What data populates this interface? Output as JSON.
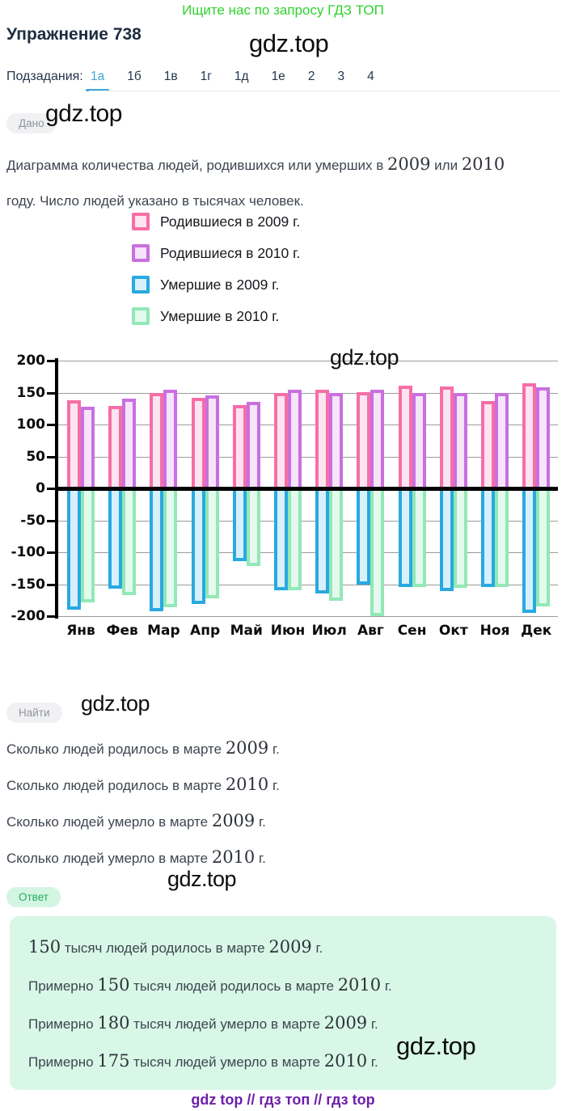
{
  "promo": {
    "text": "Ищите нас по запросу ГДЗ ТОП",
    "color": "#2ed32e"
  },
  "watermark": {
    "text": "gdz.top"
  },
  "title": "Упражнение 738",
  "tabs": {
    "label": "Подзадания:",
    "active_color": "#42a7d8",
    "items": [
      {
        "id": "1a",
        "label": "1а",
        "active": true
      },
      {
        "id": "1b",
        "label": "1б",
        "active": false
      },
      {
        "id": "1v",
        "label": "1в",
        "active": false
      },
      {
        "id": "1g",
        "label": "1г",
        "active": false
      },
      {
        "id": "1d",
        "label": "1д",
        "active": false
      },
      {
        "id": "1e",
        "label": "1е",
        "active": false
      },
      {
        "id": "2",
        "label": "2",
        "active": false
      },
      {
        "id": "3",
        "label": "3",
        "active": false
      },
      {
        "id": "4",
        "label": "4",
        "active": false
      }
    ]
  },
  "given": {
    "badge": "Дано",
    "lines": [
      [
        {
          "t": "Диаграмма количества людей, родившихся или умерших в "
        },
        {
          "t": "2009",
          "s": true
        },
        {
          "t": " или "
        },
        {
          "t": "2010",
          "s": true
        }
      ],
      [
        {
          "t": "году. Число людей указано в тысячах человек."
        }
      ]
    ]
  },
  "chart_data": {
    "type": "bar",
    "unit": "тысячи человек",
    "categories": [
      "Янв",
      "Фев",
      "Мар",
      "Апр",
      "Май",
      "Июн",
      "Июл",
      "Авг",
      "Сен",
      "Окт",
      "Ноя",
      "Дек"
    ],
    "series": [
      {
        "name": "Родившиеся в 2009 г.",
        "border": "#f76ea7",
        "fill": "#fce4f0",
        "values": [
          138,
          129,
          150,
          142,
          131,
          150,
          155,
          151,
          161,
          160,
          137,
          164
        ]
      },
      {
        "name": "Родившиеся в 2010 г.",
        "border": "#c96fe0",
        "fill": "#f6e4fa",
        "values": [
          128,
          140,
          155,
          145,
          135,
          155,
          150,
          155,
          150,
          150,
          150,
          158
        ]
      },
      {
        "name": "Умершие в 2009 г.",
        "border": "#29a9e1",
        "fill": "#d8f0fb",
        "values": [
          -190,
          -157,
          -193,
          -181,
          -114,
          -160,
          -165,
          -150,
          -155,
          -161,
          -155,
          -195
        ]
      },
      {
        "name": "Умершие в 2010 г.",
        "border": "#92e8b6",
        "fill": "#e4faee",
        "values": [
          -178,
          -167,
          -186,
          -172,
          -122,
          -159,
          -176,
          -200,
          -154,
          -156,
          -154,
          -185
        ]
      }
    ],
    "ylim": [
      -200,
      200
    ],
    "yticks": [
      200,
      150,
      100,
      50,
      0,
      -50,
      -100,
      -150,
      -200
    ],
    "grid": true,
    "legend_position": "above-chart"
  },
  "find": {
    "badge": "Найти",
    "questions": [
      [
        {
          "t": "Сколько людей родилось в марте "
        },
        {
          "t": "2009",
          "s": true
        },
        {
          "t": " г."
        }
      ],
      [
        {
          "t": "Сколько людей родилось в марте "
        },
        {
          "t": "2010",
          "s": true
        },
        {
          "t": " г."
        }
      ],
      [
        {
          "t": "Сколько людей умерло в марте "
        },
        {
          "t": "2009",
          "s": true
        },
        {
          "t": " г."
        }
      ],
      [
        {
          "t": "Сколько людей умерло в марте "
        },
        {
          "t": "2010",
          "s": true
        },
        {
          "t": " г."
        }
      ]
    ]
  },
  "answer": {
    "badge": "Ответ",
    "box_color": "#d8f7e7",
    "lines": [
      [
        {
          "t": "150",
          "s": true
        },
        {
          "t": " тысяч людей родилось в марте "
        },
        {
          "t": "2009",
          "s": true
        },
        {
          "t": " г."
        }
      ],
      [
        {
          "t": "Примерно "
        },
        {
          "t": "150",
          "s": true
        },
        {
          "t": " тысяч людей родилось в марте "
        },
        {
          "t": "2010",
          "s": true
        },
        {
          "t": " г."
        }
      ],
      [
        {
          "t": "Примерно "
        },
        {
          "t": "180",
          "s": true
        },
        {
          "t": " тысяч людей умерло в марте "
        },
        {
          "t": "2009",
          "s": true
        },
        {
          "t": " г."
        }
      ],
      [
        {
          "t": "Примерно "
        },
        {
          "t": "175",
          "s": true
        },
        {
          "t": " тысяч людей умерло в марте "
        },
        {
          "t": "2010",
          "s": true
        },
        {
          "t": " г."
        }
      ]
    ]
  },
  "footer": {
    "text": "gdz top  //  гдз топ  //  гдз top",
    "color": "#6e1ea9"
  }
}
